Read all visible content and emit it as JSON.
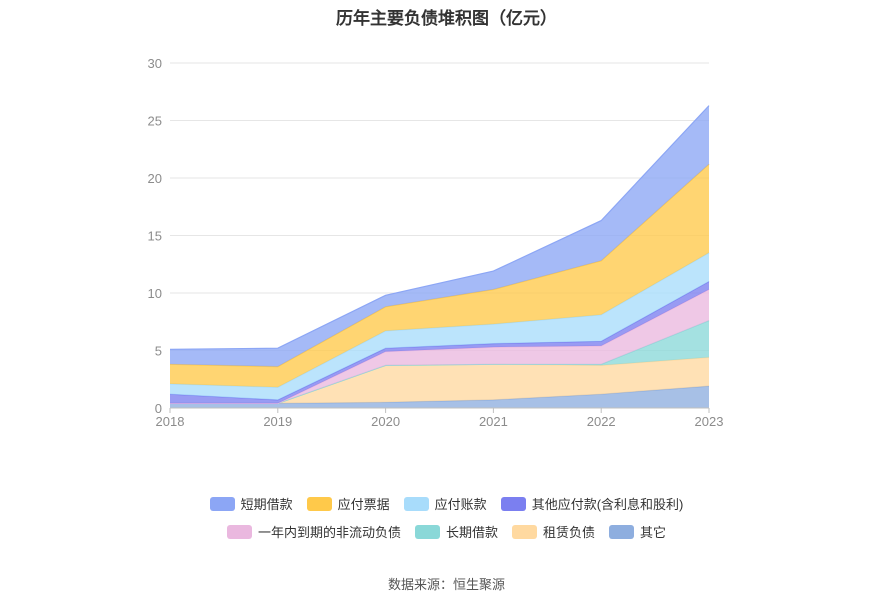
{
  "chart_data": {
    "type": "area",
    "stacked": true,
    "title": "历年主要负债堆积图（亿元）",
    "x": [
      "2018",
      "2019",
      "2020",
      "2021",
      "2022",
      "2023"
    ],
    "ylim": [
      0,
      30
    ],
    "yticks": [
      0,
      5,
      10,
      15,
      20,
      25,
      30
    ],
    "grid": true,
    "legend_position": "bottom",
    "series": [
      {
        "name": "其它",
        "color": "#8eaedf",
        "values": [
          0.4,
          0.4,
          0.5,
          0.7,
          1.2,
          1.9
        ]
      },
      {
        "name": "租赁负债",
        "color": "#ffd9a0",
        "values": [
          0.0,
          0.0,
          3.2,
          3.1,
          2.5,
          2.5
        ]
      },
      {
        "name": "长期借款",
        "color": "#8ad8d8",
        "values": [
          0.0,
          0.0,
          0.0,
          0.0,
          0.1,
          3.2
        ]
      },
      {
        "name": "一年内到期的非流动负债",
        "color": "#eab8df",
        "values": [
          0.0,
          0.0,
          1.2,
          1.5,
          1.6,
          2.7
        ]
      },
      {
        "name": "其他应付款(含利息和股利)",
        "color": "#7b7ff0",
        "values": [
          0.8,
          0.3,
          0.3,
          0.3,
          0.4,
          0.7
        ]
      },
      {
        "name": "应付账款",
        "color": "#a8dcfb",
        "values": [
          0.9,
          1.1,
          1.5,
          1.7,
          2.3,
          2.5
        ]
      },
      {
        "name": "应付票据",
        "color": "#ffc94a",
        "values": [
          1.7,
          1.8,
          2.1,
          3.0,
          4.7,
          7.7
        ]
      },
      {
        "name": "短期借款",
        "color": "#8ca6f5",
        "values": [
          1.3,
          1.6,
          1.0,
          1.6,
          3.5,
          5.1
        ]
      }
    ],
    "legend_order": [
      [
        "短期借款",
        "应付票据",
        "应付账款",
        "其他应付款(含利息和股利)"
      ],
      [
        "一年内到期的非流动负债",
        "长期借款",
        "租赁负债",
        "其它"
      ]
    ]
  },
  "source": "数据来源：恒生聚源"
}
